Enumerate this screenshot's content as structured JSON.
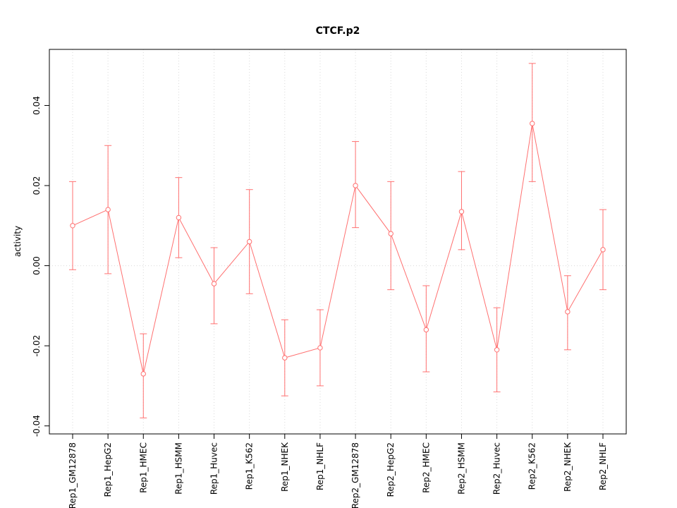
{
  "chart_data": {
    "type": "line",
    "title": "CTCF.p2",
    "ylabel": "activity",
    "xlabel": "",
    "color": "#FF7070",
    "grid_color": "#D9D9D9",
    "axis_color": "#000000",
    "ylim": [
      -0.042,
      0.054
    ],
    "yticks": [
      -0.04,
      -0.02,
      0,
      0.02,
      0.04
    ],
    "grid": "vertical dotted gridline at each category; dotted horizontal line at y=0",
    "legend": "none",
    "point_style": "open-circle",
    "error_bars": true,
    "categories": [
      "Rep1_GM12878",
      "Rep1_HepG2",
      "Rep1_HMEC",
      "Rep1_HSMM",
      "Rep1_Huvec",
      "Rep1_K562",
      "Rep1_NHEK",
      "Rep1_NHLF",
      "Rep2_GM12878",
      "Rep2_HepG2",
      "Rep2_HMEC",
      "Rep2_HSMM",
      "Rep2_Huvec",
      "Rep2_K562",
      "Rep2_NHEK",
      "Rep2_NHLF"
    ],
    "series": [
      {
        "name": "activity",
        "values": [
          0.01,
          0.014,
          -0.027,
          0.012,
          -0.0045,
          0.006,
          -0.023,
          -0.0205,
          0.02,
          0.008,
          -0.016,
          0.0135,
          -0.021,
          0.0355,
          -0.0115,
          0.004
        ],
        "ci_low": [
          -0.001,
          -0.002,
          -0.038,
          0.002,
          -0.0145,
          -0.007,
          -0.0325,
          -0.03,
          0.0095,
          -0.006,
          -0.0265,
          0.004,
          -0.0315,
          0.021,
          -0.021,
          -0.006
        ],
        "ci_high": [
          0.021,
          0.03,
          -0.017,
          0.022,
          0.0045,
          0.019,
          -0.0135,
          -0.011,
          0.031,
          0.021,
          -0.005,
          0.0235,
          -0.0105,
          0.0505,
          -0.0025,
          0.014
        ]
      }
    ]
  }
}
